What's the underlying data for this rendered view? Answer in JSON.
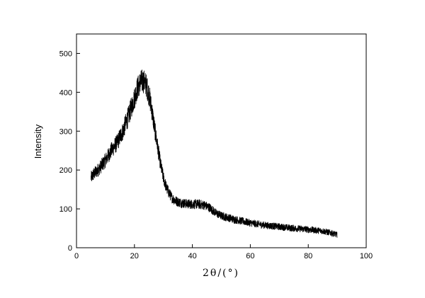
{
  "chart_data": {
    "type": "line",
    "title": "",
    "xlabel": "2θ/(°)",
    "ylabel": "Intensity",
    "xlim": [
      0,
      100
    ],
    "ylim": [
      0,
      550
    ],
    "x_ticks": [
      "0",
      "20",
      "40",
      "60",
      "80",
      "100"
    ],
    "y_ticks": [
      "0",
      "100",
      "200",
      "300",
      "400",
      "500"
    ],
    "grid": false,
    "legend": "none",
    "line_color": "#000000",
    "series": [
      {
        "x": [
          5,
          6,
          8,
          10,
          12,
          14,
          16,
          18,
          20,
          21,
          22,
          23,
          24,
          25,
          26,
          27,
          28,
          29,
          30,
          31,
          32,
          33,
          34,
          35,
          36,
          38,
          40,
          42,
          44,
          46,
          48,
          50,
          55,
          60,
          65,
          70,
          75,
          80,
          85,
          88,
          90
        ],
        "values": [
          180,
          190,
          205,
          225,
          250,
          270,
          300,
          340,
          385,
          410,
          425,
          430,
          420,
          395,
          355,
          305,
          260,
          215,
          180,
          155,
          140,
          128,
          122,
          118,
          116,
          113,
          112,
          112,
          110,
          103,
          90,
          82,
          72,
          64,
          58,
          54,
          50,
          47,
          43,
          38,
          33
        ]
      }
    ]
  }
}
